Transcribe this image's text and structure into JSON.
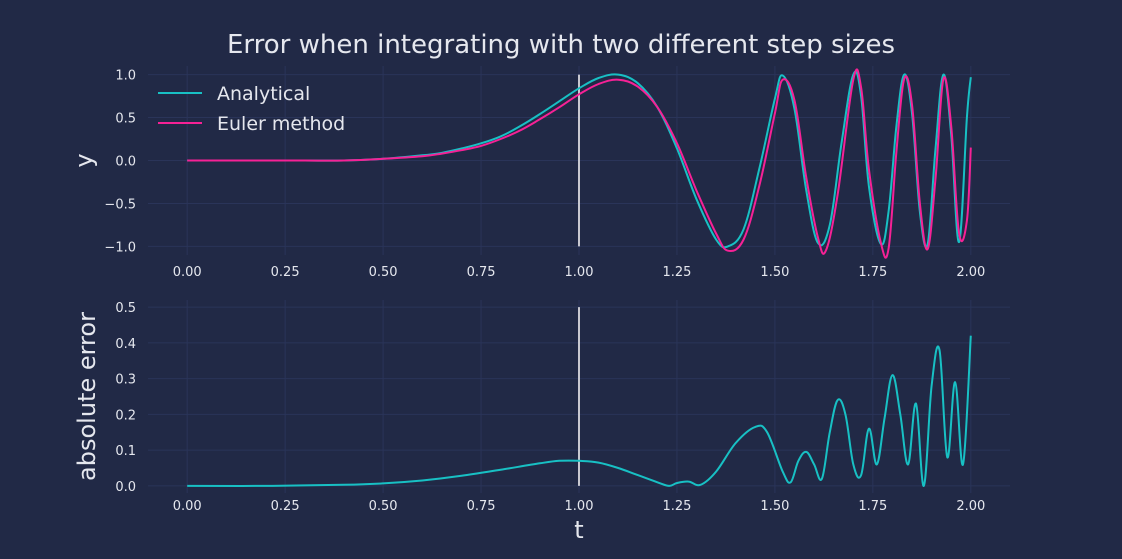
{
  "figure": {
    "title": "Error when integrating with two different step sizes",
    "colors": {
      "background": "#212946",
      "grid": "#2a3459",
      "text": "#e5e7ee",
      "analytical": "#18c0c4",
      "euler": "#f62196",
      "marker": "#c8c8d0"
    }
  },
  "chart_data": [
    {
      "type": "line",
      "title": "",
      "xlabel": "",
      "ylabel": "y",
      "xlim": [
        -0.1,
        2.1
      ],
      "ylim": [
        -1.1,
        1.1
      ],
      "xticks": [
        0.0,
        0.25,
        0.5,
        0.75,
        1.0,
        1.25,
        1.5,
        1.75,
        2.0
      ],
      "xtick_labels": [
        "0.00",
        "0.25",
        "0.50",
        "0.75",
        "1.00",
        "1.25",
        "1.50",
        "1.75",
        "2.00"
      ],
      "yticks": [
        -1.0,
        -0.5,
        0.0,
        0.5,
        1.0
      ],
      "ytick_labels": [
        "−1.0",
        "−0.5",
        "0.0",
        "0.5",
        "1.0"
      ],
      "grid": true,
      "legend_position": "top-left",
      "vline_x": 1.0,
      "series": [
        {
          "name": "Analytical",
          "color": "#18c0c4",
          "x": [
            0.0,
            0.1,
            0.2,
            0.3,
            0.4,
            0.5,
            0.6,
            0.65,
            0.7,
            0.75,
            0.8,
            0.85,
            0.9,
            0.95,
            1.0,
            1.05,
            1.1,
            1.15,
            1.2,
            1.25,
            1.3,
            1.35,
            1.38,
            1.42,
            1.46,
            1.5,
            1.52,
            1.55,
            1.58,
            1.61,
            1.64,
            1.67,
            1.7,
            1.72,
            1.74,
            1.77,
            1.79,
            1.81,
            1.83,
            1.85,
            1.87,
            1.89,
            1.91,
            1.93,
            1.95,
            1.97,
            1.99,
            2.0
          ],
          "y": [
            0.0,
            0.0,
            0.0,
            0.0,
            0.0,
            0.02,
            0.06,
            0.09,
            0.14,
            0.2,
            0.28,
            0.4,
            0.54,
            0.69,
            0.84,
            0.96,
            1.0,
            0.9,
            0.62,
            0.14,
            -0.45,
            -0.92,
            -1.0,
            -0.8,
            -0.1,
            0.72,
            0.99,
            0.6,
            -0.35,
            -0.96,
            -0.75,
            0.2,
            1.0,
            0.75,
            -0.3,
            -0.97,
            -0.6,
            0.4,
            1.0,
            0.55,
            -0.6,
            -0.97,
            0.15,
            1.0,
            0.3,
            -0.95,
            0.5,
            0.97
          ]
        },
        {
          "name": "Euler method",
          "color": "#f62196",
          "x": [
            0.0,
            0.1,
            0.2,
            0.3,
            0.4,
            0.5,
            0.6,
            0.65,
            0.7,
            0.75,
            0.8,
            0.85,
            0.9,
            0.95,
            1.0,
            1.05,
            1.1,
            1.15,
            1.2,
            1.25,
            1.3,
            1.35,
            1.38,
            1.42,
            1.46,
            1.5,
            1.52,
            1.55,
            1.58,
            1.61,
            1.63,
            1.66,
            1.7,
            1.72,
            1.74,
            1.77,
            1.79,
            1.81,
            1.83,
            1.85,
            1.87,
            1.89,
            1.91,
            1.93,
            1.95,
            1.97,
            1.99,
            2.0
          ],
          "y": [
            0.0,
            0.0,
            0.0,
            0.0,
            0.0,
            0.02,
            0.05,
            0.08,
            0.12,
            0.17,
            0.25,
            0.35,
            0.48,
            0.62,
            0.77,
            0.89,
            0.94,
            0.86,
            0.62,
            0.2,
            -0.35,
            -0.85,
            -1.05,
            -0.92,
            -0.3,
            0.55,
            0.94,
            0.7,
            -0.2,
            -0.9,
            -1.05,
            -0.4,
            0.94,
            0.85,
            -0.1,
            -0.95,
            -1.03,
            0.1,
            0.95,
            0.65,
            -0.5,
            -1.03,
            -0.2,
            0.95,
            0.4,
            -0.85,
            -0.7,
            0.15
          ]
        }
      ]
    },
    {
      "type": "line",
      "title": "",
      "xlabel": "t",
      "ylabel": "absolute error",
      "xlim": [
        -0.1,
        2.1
      ],
      "ylim": [
        -0.02,
        0.52
      ],
      "xticks": [
        0.0,
        0.25,
        0.5,
        0.75,
        1.0,
        1.25,
        1.5,
        1.75,
        2.0
      ],
      "xtick_labels": [
        "0.00",
        "0.25",
        "0.50",
        "0.75",
        "1.00",
        "1.25",
        "1.50",
        "1.75",
        "2.00"
      ],
      "yticks": [
        0.0,
        0.1,
        0.2,
        0.3,
        0.4,
        0.5
      ],
      "ytick_labels": [
        "0.0",
        "0.1",
        "0.2",
        "0.3",
        "0.4",
        "0.5"
      ],
      "grid": true,
      "vline_x": 1.0,
      "series": [
        {
          "name": "",
          "color": "#18c0c4",
          "x": [
            0.0,
            0.2,
            0.4,
            0.5,
            0.6,
            0.7,
            0.8,
            0.9,
            0.95,
            1.0,
            1.05,
            1.1,
            1.15,
            1.2,
            1.23,
            1.25,
            1.28,
            1.31,
            1.35,
            1.4,
            1.45,
            1.48,
            1.52,
            1.54,
            1.56,
            1.58,
            1.6,
            1.62,
            1.64,
            1.66,
            1.68,
            1.7,
            1.72,
            1.74,
            1.76,
            1.78,
            1.8,
            1.82,
            1.84,
            1.86,
            1.88,
            1.9,
            1.92,
            1.94,
            1.96,
            1.98,
            2.0
          ],
          "y": [
            0.0,
            0.0,
            0.003,
            0.007,
            0.015,
            0.028,
            0.045,
            0.063,
            0.07,
            0.07,
            0.065,
            0.05,
            0.03,
            0.01,
            0.0,
            0.008,
            0.012,
            0.003,
            0.04,
            0.12,
            0.165,
            0.15,
            0.04,
            0.01,
            0.07,
            0.095,
            0.06,
            0.02,
            0.15,
            0.24,
            0.2,
            0.06,
            0.03,
            0.16,
            0.06,
            0.19,
            0.31,
            0.2,
            0.06,
            0.23,
            0.0,
            0.28,
            0.38,
            0.08,
            0.29,
            0.06,
            0.42
          ]
        }
      ]
    }
  ]
}
